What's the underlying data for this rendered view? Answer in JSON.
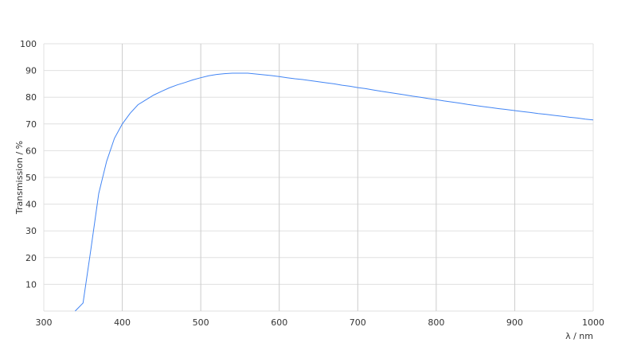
{
  "chart_data": {
    "type": "line",
    "title": "",
    "xlabel": "λ / nm",
    "ylabel": "Transmission / %",
    "xlim": [
      300,
      1000
    ],
    "ylim": [
      0,
      100
    ],
    "xticks": [
      300,
      400,
      500,
      600,
      700,
      800,
      900,
      1000
    ],
    "yticks": [
      10,
      20,
      30,
      40,
      50,
      60,
      70,
      80,
      90,
      100
    ],
    "grid": true,
    "line_color": "#4285f4",
    "series": [
      {
        "x": [
          340,
          350,
          360,
          370,
          380,
          390,
          400,
          410,
          420,
          430,
          440,
          450,
          460,
          470,
          480,
          490,
          500,
          510,
          520,
          530,
          540,
          550,
          560,
          570,
          580,
          590,
          600,
          610,
          620,
          630,
          640,
          650,
          660,
          670,
          680,
          690,
          700,
          710,
          720,
          730,
          740,
          750,
          760,
          770,
          780,
          790,
          800,
          810,
          820,
          830,
          840,
          850,
          860,
          870,
          880,
          890,
          900,
          910,
          920,
          930,
          940,
          950,
          960,
          970,
          980,
          990,
          1000
        ],
        "y": [
          0,
          3,
          23,
          44,
          56,
          64.6,
          70,
          74,
          77.2,
          79,
          80.8,
          82.2,
          83.5,
          84.6,
          85.5,
          86.5,
          87.3,
          88,
          88.5,
          88.8,
          89,
          89,
          89,
          88.7,
          88.4,
          88.1,
          87.7,
          87.3,
          86.9,
          86.6,
          86.2,
          85.8,
          85.4,
          85,
          84.5,
          84.1,
          83.6,
          83.2,
          82.7,
          82.2,
          81.8,
          81.3,
          80.9,
          80.4,
          80,
          79.5,
          79.1,
          78.6,
          78.2,
          77.8,
          77.3,
          76.9,
          76.5,
          76.1,
          75.7,
          75.4,
          75,
          74.6,
          74.3,
          73.9,
          73.6,
          73.2,
          72.9,
          72.5,
          72.2,
          71.8,
          71.5
        ]
      }
    ]
  }
}
